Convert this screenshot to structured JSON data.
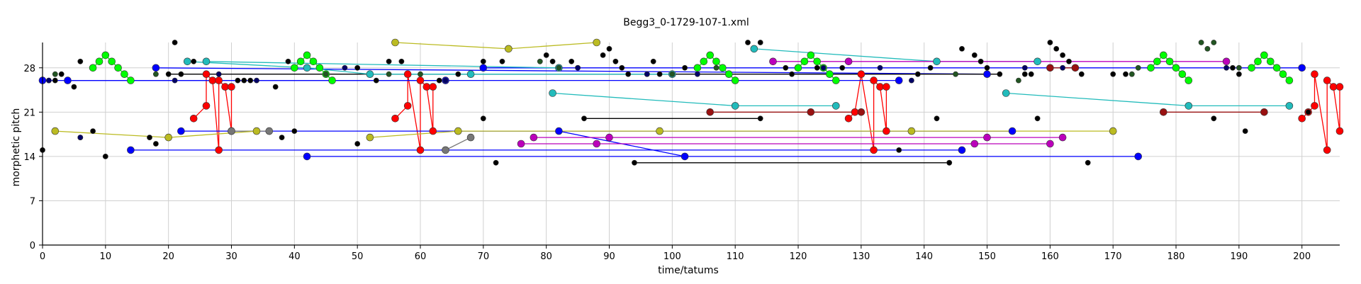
{
  "chart_data": {
    "type": "scatter",
    "title": "Begg3_0-1729-107-1.xml",
    "xlabel": "time/tatums",
    "ylabel": "morphetic pitch",
    "xlim": [
      0,
      206
    ],
    "ylim": [
      0,
      32
    ],
    "xticks": [
      0,
      10,
      20,
      30,
      40,
      50,
      60,
      70,
      80,
      90,
      100,
      110,
      120,
      130,
      140,
      150,
      160,
      170,
      180,
      190,
      200
    ],
    "yticks": [
      0,
      7,
      14,
      21,
      28
    ],
    "grid": true,
    "legend": "none",
    "colors": {
      "red": "#ff0000",
      "blue": "#0000ff",
      "green": "#00ff00",
      "black": "#000000",
      "yellow": "#bbbb22",
      "cyan": "#22bbbb",
      "magenta": "#bb00bb",
      "gray": "#777777",
      "darkgreen": "#225522",
      "darkred": "#991111",
      "navy": "#000066"
    },
    "series": [
      {
        "color": "green",
        "connected": true,
        "points": [
          [
            8,
            28
          ],
          [
            9,
            29
          ],
          [
            10,
            30
          ],
          [
            11,
            29
          ],
          [
            12,
            28
          ],
          [
            13,
            27
          ],
          [
            14,
            26
          ]
        ]
      },
      {
        "color": "green",
        "connected": true,
        "points": [
          [
            40,
            28
          ],
          [
            41,
            29
          ],
          [
            42,
            30
          ],
          [
            43,
            29
          ],
          [
            44,
            28
          ],
          [
            45,
            27
          ],
          [
            46,
            26
          ]
        ]
      },
      {
        "color": "green",
        "connected": true,
        "points": [
          [
            104,
            28
          ],
          [
            105,
            29
          ],
          [
            106,
            30
          ],
          [
            107,
            29
          ],
          [
            108,
            28
          ],
          [
            109,
            27
          ],
          [
            110,
            26
          ]
        ]
      },
      {
        "color": "green",
        "connected": true,
        "points": [
          [
            120,
            28
          ],
          [
            121,
            29
          ],
          [
            122,
            30
          ],
          [
            123,
            29
          ],
          [
            124,
            28
          ],
          [
            125,
            27
          ],
          [
            126,
            26
          ]
        ]
      },
      {
        "color": "green",
        "connected": true,
        "points": [
          [
            176,
            28
          ],
          [
            177,
            29
          ],
          [
            178,
            30
          ],
          [
            179,
            29
          ],
          [
            180,
            28
          ],
          [
            181,
            27
          ],
          [
            182,
            26
          ]
        ]
      },
      {
        "color": "green",
        "connected": true,
        "points": [
          [
            192,
            28
          ],
          [
            193,
            29
          ],
          [
            194,
            30
          ],
          [
            195,
            29
          ],
          [
            196,
            28
          ],
          [
            197,
            27
          ],
          [
            198,
            26
          ]
        ]
      },
      {
        "color": "red",
        "connected": true,
        "points": [
          [
            24,
            20
          ],
          [
            26,
            22
          ],
          [
            26,
            27
          ],
          [
            27,
            26
          ],
          [
            28,
            15
          ],
          [
            28,
            26
          ],
          [
            29,
            25
          ],
          [
            30,
            18
          ],
          [
            30,
            25
          ]
        ]
      },
      {
        "color": "red",
        "connected": true,
        "points": [
          [
            56,
            20
          ],
          [
            58,
            22
          ],
          [
            58,
            27
          ],
          [
            60,
            15
          ],
          [
            60,
            26
          ],
          [
            61,
            25
          ],
          [
            62,
            18
          ],
          [
            62,
            25
          ]
        ]
      },
      {
        "color": "red",
        "connected": true,
        "points": [
          [
            128,
            20
          ],
          [
            129,
            21
          ],
          [
            130,
            27
          ],
          [
            132,
            15
          ],
          [
            132,
            26
          ],
          [
            133,
            25
          ],
          [
            134,
            18
          ],
          [
            134,
            25
          ]
        ]
      },
      {
        "color": "red",
        "connected": true,
        "points": [
          [
            200,
            20
          ],
          [
            201,
            21
          ],
          [
            202,
            22
          ],
          [
            202,
            27
          ],
          [
            204,
            15
          ],
          [
            204,
            26
          ],
          [
            205,
            25
          ],
          [
            206,
            18
          ],
          [
            206,
            25
          ]
        ]
      },
      {
        "color": "blue",
        "connected": true,
        "points": [
          [
            0,
            26
          ],
          [
            64,
            26
          ]
        ]
      },
      {
        "color": "blue",
        "connected": true,
        "points": [
          [
            4,
            26
          ],
          [
            136,
            26
          ]
        ]
      },
      {
        "color": "blue",
        "connected": true,
        "points": [
          [
            22,
            18
          ],
          [
            154,
            18
          ]
        ]
      },
      {
        "color": "blue",
        "connected": true,
        "points": [
          [
            14,
            15
          ],
          [
            146,
            15
          ]
        ]
      },
      {
        "color": "blue",
        "connected": true,
        "points": [
          [
            42,
            14
          ],
          [
            174,
            14
          ]
        ]
      },
      {
        "color": "blue",
        "connected": true,
        "points": [
          [
            18,
            28
          ],
          [
            150,
            27
          ]
        ]
      },
      {
        "color": "blue",
        "connected": true,
        "points": [
          [
            70,
            28
          ],
          [
            200,
            28
          ]
        ]
      },
      {
        "color": "blue",
        "connected": true,
        "points": [
          [
            82,
            18
          ],
          [
            102,
            14
          ]
        ]
      },
      {
        "color": "black",
        "connected": true,
        "points": [
          [
            94,
            13
          ],
          [
            144,
            13
          ]
        ]
      },
      {
        "color": "black",
        "connected": true,
        "points": [
          [
            86,
            20
          ],
          [
            114,
            20
          ]
        ]
      },
      {
        "color": "black",
        "connected": true,
        "points": [
          [
            20,
            27
          ],
          [
            152,
            27
          ]
        ]
      },
      {
        "color": "gray",
        "connected": true,
        "points": [
          [
            64,
            15
          ],
          [
            68,
            17
          ]
        ]
      },
      {
        "color": "gray",
        "connected": true,
        "points": [
          [
            30,
            18
          ],
          [
            36,
            18
          ]
        ]
      },
      {
        "color": "yellow",
        "connected": true,
        "points": [
          [
            2,
            18
          ],
          [
            20,
            17
          ],
          [
            34,
            18
          ]
        ]
      },
      {
        "color": "yellow",
        "connected": true,
        "points": [
          [
            56,
            32
          ],
          [
            74,
            31
          ],
          [
            88,
            32
          ]
        ]
      },
      {
        "color": "yellow",
        "connected": true,
        "points": [
          [
            52,
            17
          ],
          [
            66,
            18
          ],
          [
            98,
            18
          ],
          [
            138,
            18
          ],
          [
            170,
            18
          ]
        ]
      },
      {
        "color": "cyan",
        "connected": true,
        "points": [
          [
            23,
            29
          ],
          [
            42,
            28
          ],
          [
            52,
            27
          ],
          [
            68,
            27
          ],
          [
            100,
            27
          ]
        ]
      },
      {
        "color": "cyan",
        "connected": true,
        "points": [
          [
            26,
            29
          ],
          [
            82,
            28
          ]
        ]
      },
      {
        "color": "cyan",
        "connected": true,
        "points": [
          [
            81,
            24
          ],
          [
            110,
            22
          ],
          [
            126,
            22
          ]
        ]
      },
      {
        "color": "cyan",
        "connected": true,
        "points": [
          [
            113,
            31
          ],
          [
            142,
            29
          ],
          [
            158,
            29
          ]
        ]
      },
      {
        "color": "cyan",
        "connected": true,
        "points": [
          [
            153,
            24
          ],
          [
            182,
            22
          ],
          [
            198,
            22
          ]
        ]
      },
      {
        "color": "magenta",
        "connected": true,
        "points": [
          [
            76,
            16
          ],
          [
            88,
            16
          ],
          [
            148,
            16
          ],
          [
            160,
            16
          ]
        ]
      },
      {
        "color": "magenta",
        "connected": true,
        "points": [
          [
            78,
            17
          ],
          [
            90,
            17
          ],
          [
            150,
            17
          ],
          [
            162,
            17
          ]
        ]
      },
      {
        "color": "magenta",
        "connected": true,
        "points": [
          [
            116,
            29
          ],
          [
            128,
            29
          ],
          [
            188,
            29
          ]
        ]
      },
      {
        "color": "darkred",
        "connected": true,
        "points": [
          [
            106,
            21
          ],
          [
            122,
            21
          ],
          [
            130,
            21
          ]
        ]
      },
      {
        "color": "darkred",
        "connected": true,
        "points": [
          [
            178,
            21
          ],
          [
            194,
            21
          ]
        ]
      },
      {
        "color": "darkred",
        "connected": true,
        "points": [
          [
            160,
            28
          ],
          [
            164,
            28
          ]
        ]
      },
      {
        "color": "black",
        "connected": false,
        "points": [
          [
            0,
            15
          ],
          [
            2,
            26
          ],
          [
            3,
            27
          ],
          [
            5,
            25
          ],
          [
            6,
            29
          ],
          [
            6,
            17
          ],
          [
            8,
            18
          ],
          [
            10,
            14
          ],
          [
            17,
            17
          ],
          [
            18,
            16
          ],
          [
            21,
            32
          ],
          [
            22,
            27
          ],
          [
            24,
            29
          ],
          [
            31,
            26
          ],
          [
            32,
            26
          ],
          [
            33,
            26
          ],
          [
            37,
            25
          ],
          [
            38,
            17
          ],
          [
            39,
            29
          ],
          [
            40,
            18
          ],
          [
            50,
            16
          ],
          [
            50,
            28
          ],
          [
            53,
            26
          ],
          [
            55,
            29
          ],
          [
            57,
            29
          ],
          [
            63,
            26
          ],
          [
            64,
            26
          ],
          [
            66,
            27
          ],
          [
            70,
            20
          ],
          [
            70,
            29
          ],
          [
            72,
            13
          ],
          [
            73,
            29
          ],
          [
            80,
            30
          ],
          [
            81,
            29
          ],
          [
            84,
            29
          ],
          [
            85,
            28
          ],
          [
            89,
            30
          ],
          [
            90,
            31
          ],
          [
            91,
            29
          ],
          [
            92,
            28
          ],
          [
            93,
            27
          ],
          [
            96,
            27
          ],
          [
            97,
            29
          ],
          [
            98,
            27
          ],
          [
            102,
            28
          ],
          [
            112,
            32
          ],
          [
            114,
            32
          ],
          [
            118,
            28
          ],
          [
            119,
            27
          ],
          [
            123,
            28
          ],
          [
            127,
            28
          ],
          [
            136,
            15
          ],
          [
            139,
            27
          ],
          [
            141,
            28
          ],
          [
            142,
            20
          ],
          [
            144,
            13
          ],
          [
            146,
            31
          ],
          [
            148,
            30
          ],
          [
            149,
            29
          ],
          [
            150,
            28
          ],
          [
            156,
            27
          ],
          [
            157,
            27
          ],
          [
            158,
            20
          ],
          [
            160,
            32
          ],
          [
            161,
            31
          ],
          [
            162,
            30
          ],
          [
            163,
            29
          ],
          [
            165,
            27
          ],
          [
            166,
            13
          ],
          [
            170,
            27
          ],
          [
            172,
            27
          ],
          [
            186,
            20
          ],
          [
            189,
            28
          ],
          [
            190,
            27
          ],
          [
            191,
            18
          ],
          [
            201,
            21
          ]
        ]
      },
      {
        "color": "darkgreen",
        "connected": false,
        "points": [
          [
            1,
            26
          ],
          [
            2,
            27
          ],
          [
            18,
            27
          ],
          [
            45,
            27
          ],
          [
            55,
            27
          ],
          [
            60,
            27
          ],
          [
            79,
            29
          ],
          [
            82,
            28
          ],
          [
            100,
            27
          ],
          [
            107,
            28
          ],
          [
            145,
            27
          ],
          [
            155,
            26
          ],
          [
            173,
            27
          ],
          [
            174,
            28
          ],
          [
            184,
            32
          ],
          [
            185,
            31
          ],
          [
            186,
            32
          ],
          [
            190,
            28
          ]
        ]
      },
      {
        "color": "navy",
        "connected": false,
        "points": [
          [
            1,
            26
          ],
          [
            6,
            17
          ],
          [
            21,
            26
          ],
          [
            28,
            27
          ],
          [
            34,
            26
          ],
          [
            48,
            28
          ],
          [
            64,
            26
          ],
          [
            85,
            28
          ],
          [
            96,
            27
          ],
          [
            104,
            27
          ],
          [
            124,
            28
          ],
          [
            133,
            28
          ],
          [
            138,
            26
          ],
          [
            156,
            28
          ],
          [
            162,
            28
          ],
          [
            188,
            28
          ]
        ]
      }
    ]
  }
}
